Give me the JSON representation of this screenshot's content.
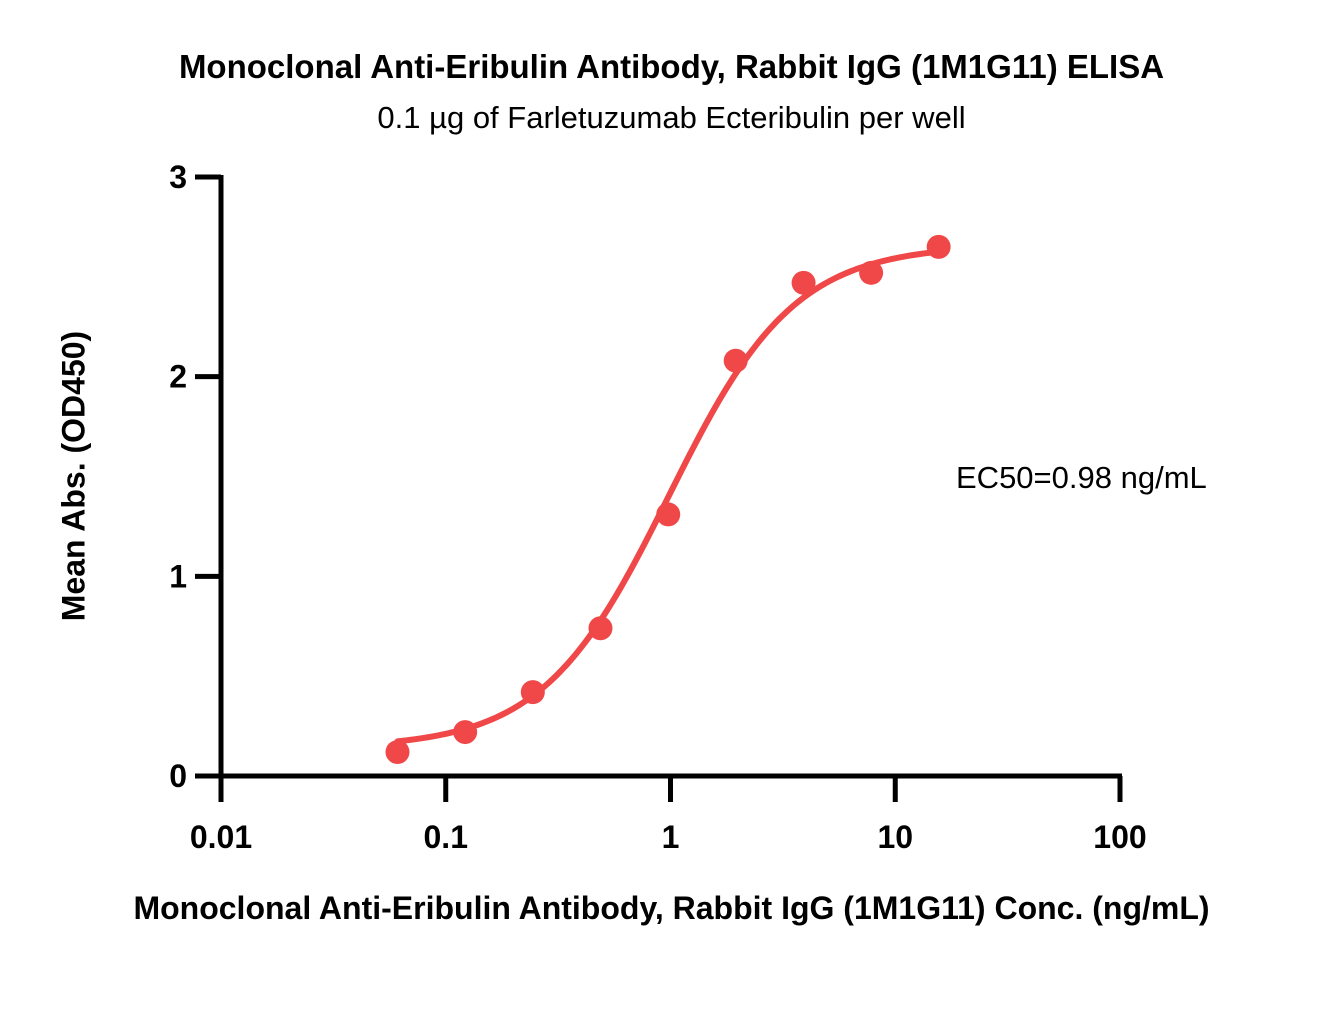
{
  "chart_data": {
    "type": "scatter",
    "title": "Monoclonal Anti-Eribulin Antibody, Rabbit IgG (1M1G11) ELISA",
    "subtitle": "0.1 µg of Farletuzumab Ecteribulin per well",
    "xlabel": "Monoclonal Anti-Eribulin Antibody, Rabbit IgG (1M1G11) Conc. (ng/mL)",
    "ylabel": "Mean Abs. (OD450)",
    "x_scale": "log",
    "xlim": [
      0.01,
      100
    ],
    "ylim": [
      0,
      3
    ],
    "x_ticks": [
      "0.01",
      "0.1",
      "1",
      "10",
      "100"
    ],
    "y_ticks": [
      "0",
      "1",
      "2",
      "3"
    ],
    "grid": false,
    "color": "#f04848",
    "annotation": "EC50=0.98 ng/mL",
    "fit": {
      "bottom": 0.14,
      "top": 2.66,
      "ec50": 0.98,
      "hill": 1.55
    },
    "series": [
      {
        "x": [
          0.061,
          0.122,
          0.244,
          0.488,
          0.977,
          1.95,
          3.91,
          7.81,
          15.6
        ],
        "y": [
          0.12,
          0.22,
          0.42,
          0.74,
          1.31,
          2.08,
          2.47,
          2.52,
          2.65
        ]
      }
    ]
  }
}
